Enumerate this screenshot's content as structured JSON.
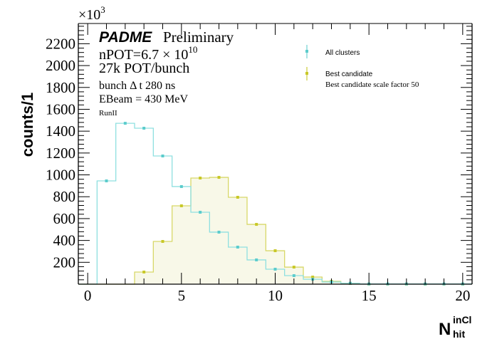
{
  "chart_data": {
    "type": "histogram",
    "xlabel": "N",
    "xlabel_sup": "inCl",
    "xlabel_sub": "hit",
    "ylabel": "counts/1",
    "y_multiplier": "×10",
    "y_multiplier_exp": "3",
    "xlim": [
      -0.5,
      20.5
    ],
    "ylim": [
      0,
      2385
    ],
    "x_ticks": [
      0,
      5,
      10,
      15,
      20
    ],
    "y_ticks": [
      200,
      400,
      600,
      800,
      1000,
      1200,
      1400,
      1600,
      1800,
      2000,
      2200
    ],
    "bin_centers": [
      0,
      1,
      2,
      3,
      4,
      5,
      6,
      7,
      8,
      9,
      10,
      11,
      12,
      13,
      14,
      15,
      16,
      17,
      18,
      19,
      20
    ],
    "series": [
      {
        "name": "All clusters",
        "color": "#5ccccc",
        "line": "#8fe0e0",
        "fill": "none",
        "values": [
          0,
          945,
          1472,
          1427,
          1173,
          893,
          658,
          476,
          339,
          222,
          137,
          78,
          45,
          20,
          8,
          2,
          2,
          2,
          2,
          2,
          2
        ]
      },
      {
        "name": "Best candidate",
        "color": "#c8c828",
        "line": "#d8d868",
        "fill": "#f8f8e8",
        "values": [
          0,
          0,
          0,
          111,
          391,
          717,
          971,
          977,
          795,
          547,
          306,
          156,
          65,
          26,
          7,
          1,
          1,
          1,
          1,
          1,
          1
        ]
      }
    ],
    "legend": {
      "position": "top-right",
      "entries": [
        "All clusters",
        "Best candidate"
      ],
      "note": "Best candidate scale factor 50"
    },
    "annotations": {
      "experiment": "PADME",
      "status": "Preliminary",
      "npot": "nPOT=6.7 × 10",
      "npot_exp": "10",
      "pot_bunch": "27k POT/bunch",
      "bunch_dt": "bunch Δ t 280 ns",
      "ebeam": "EBeam = 430 MeV",
      "run": "RunII"
    }
  }
}
